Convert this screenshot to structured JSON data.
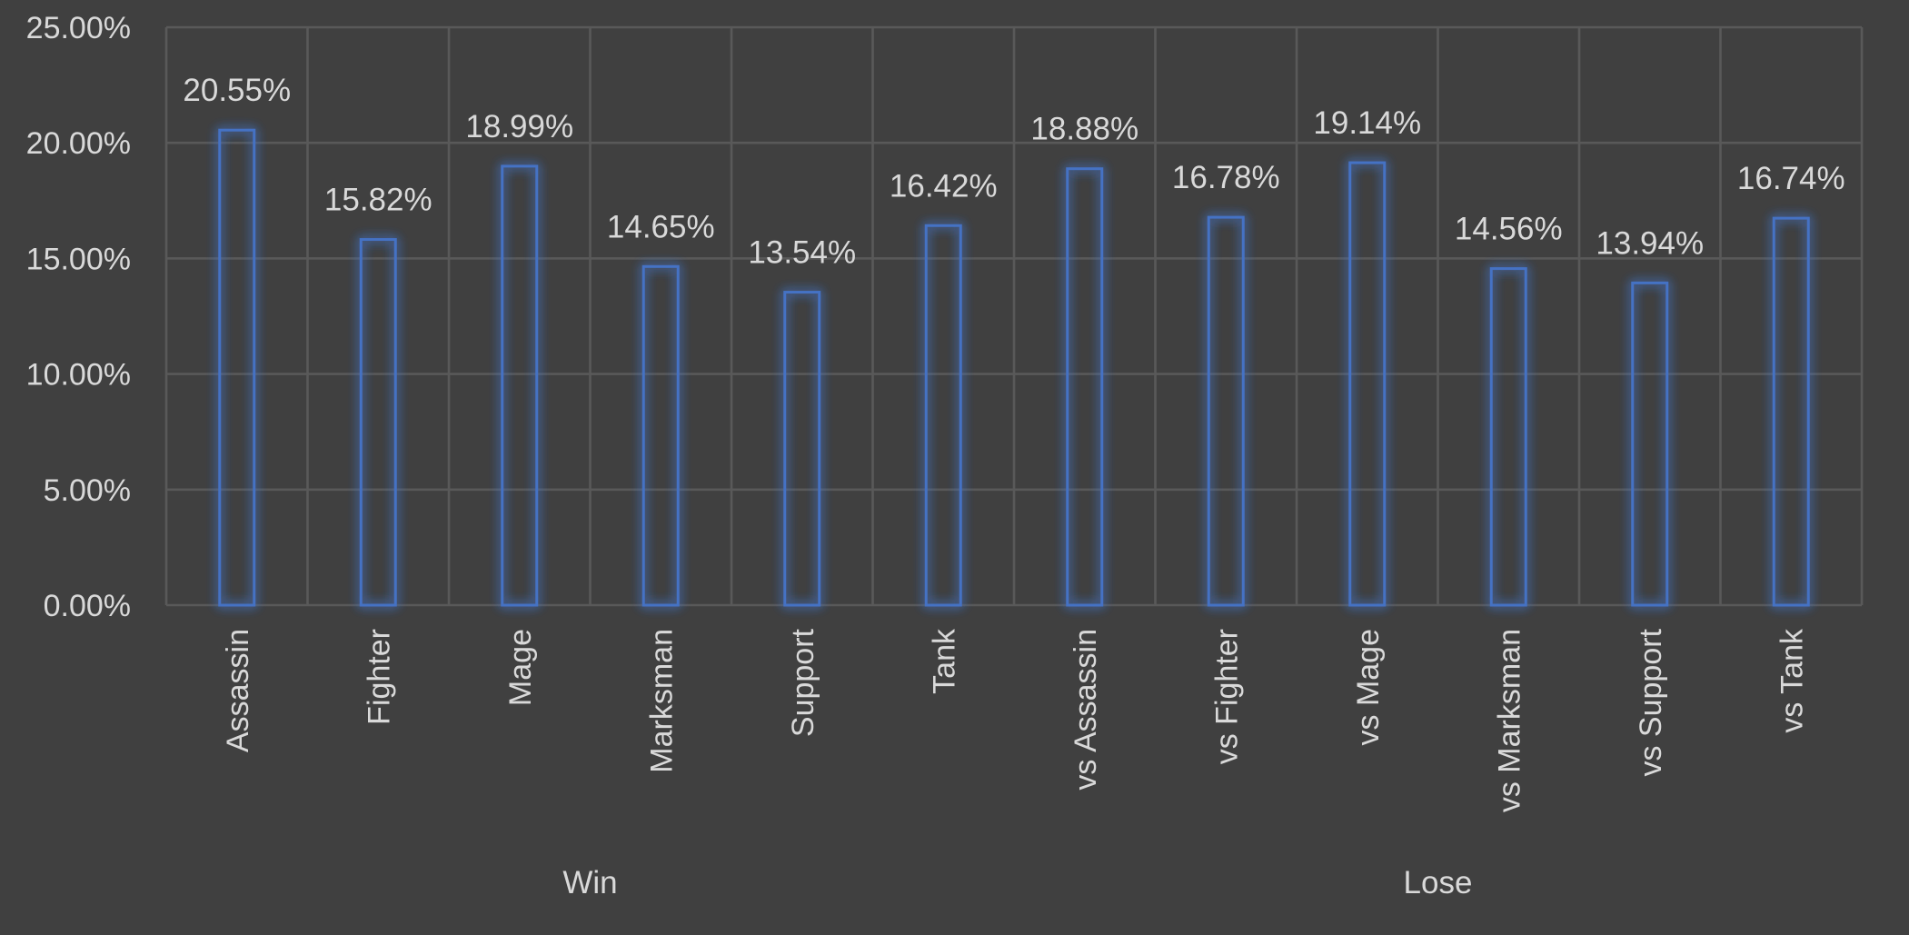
{
  "chart_data": {
    "type": "bar",
    "categories": [
      "Assassin",
      "Fighter",
      "Mage",
      "Marksman",
      "Support",
      "Tank",
      "vs Assassin",
      "vs Fighter",
      "vs Mage",
      "vs Marksman",
      "vs Support",
      "vs Tank"
    ],
    "groups": [
      {
        "label": "Win",
        "categories": [
          "Assassin",
          "Fighter",
          "Mage",
          "Marksman",
          "Support",
          "Tank"
        ]
      },
      {
        "label": "Lose",
        "categories": [
          "vs Assassin",
          "vs Fighter",
          "vs Mage",
          "vs Marksman",
          "vs Support",
          "vs Tank"
        ]
      }
    ],
    "values": [
      20.55,
      15.82,
      18.99,
      14.65,
      13.54,
      16.42,
      18.88,
      16.78,
      19.14,
      14.56,
      13.94,
      16.74
    ],
    "data_labels": [
      "20.55%",
      "15.82%",
      "18.99%",
      "14.65%",
      "13.54%",
      "16.42%",
      "18.88%",
      "16.78%",
      "19.14%",
      "14.56%",
      "13.94%",
      "16.74%"
    ],
    "y_ticks": [
      "0.00%",
      "5.00%",
      "10.00%",
      "15.00%",
      "20.00%",
      "25.00%"
    ],
    "ylim": [
      0,
      25
    ],
    "title": "",
    "xlabel": "",
    "ylabel": "",
    "grid": true,
    "legend": "none",
    "colors": {
      "background": "#404040",
      "bar_outline": "#4472c4",
      "bar_glow": "#3f6fd6",
      "gridline": "#595959",
      "text": "#d9d9d9"
    }
  }
}
